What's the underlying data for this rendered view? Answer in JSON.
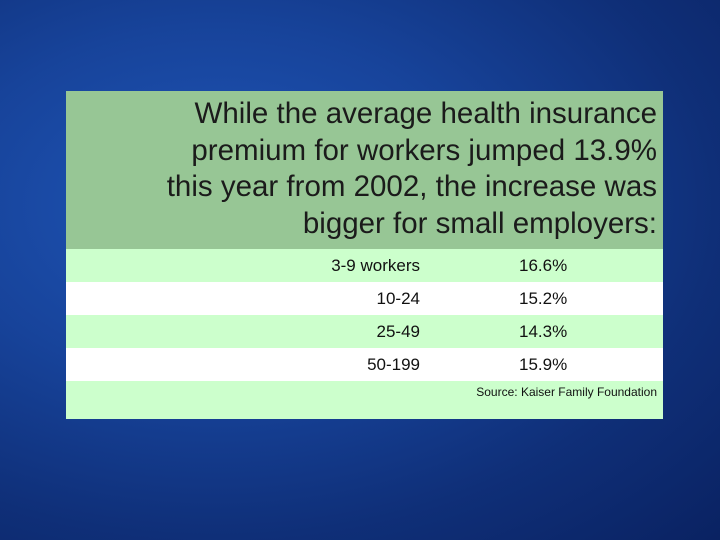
{
  "headline": "While the average health insurance\npremium for workers jumped 13.9%\nthis year from 2002, the increase was\nbigger for small employers:",
  "rows": [
    {
      "size": "3-9 workers",
      "increase": "16.6%"
    },
    {
      "size": "10-24",
      "increase": "15.2%"
    },
    {
      "size": "25-49",
      "increase": "14.3%"
    },
    {
      "size": "50-199",
      "increase": "15.9%"
    }
  ],
  "source": "Source: Kaiser Family Foundation",
  "colors": {
    "background": "#17439a",
    "header_fill": "#97c695",
    "row_light": "#ccffcc",
    "row_white": "#ffffff",
    "text": "#111111"
  }
}
